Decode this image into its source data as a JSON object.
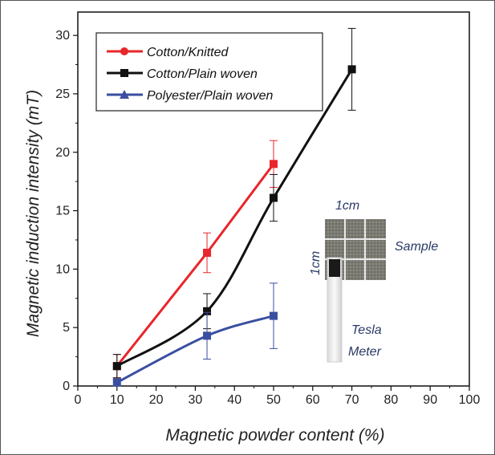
{
  "chart_data": {
    "type": "line",
    "xlabel": "Magnetic powder content (%)",
    "ylabel": "Magnetic induction intensity (mT)",
    "xlim": [
      0,
      100
    ],
    "ylim": [
      0,
      32
    ],
    "xticks": [
      0,
      10,
      20,
      30,
      40,
      50,
      60,
      70,
      80,
      90,
      100
    ],
    "yticks": [
      0,
      5,
      10,
      15,
      20,
      25,
      30
    ],
    "grid": false,
    "legend_position": "top-left",
    "series": [
      {
        "name": "Cotton/Knitted",
        "color": "#e8262b",
        "marker": "circle",
        "x": [
          10,
          33,
          50
        ],
        "y": [
          1.7,
          11.4,
          19.0
        ],
        "err": [
          1.0,
          1.7,
          2.0
        ],
        "smooth": false
      },
      {
        "name": "Cotton/Plain woven",
        "color": "#111111",
        "marker": "square",
        "x": [
          10,
          33,
          50,
          70
        ],
        "y": [
          1.7,
          6.4,
          16.1,
          27.1
        ],
        "err": [
          1.0,
          1.5,
          2.0,
          3.5
        ],
        "smooth": true
      },
      {
        "name": "Polyester/Plain woven",
        "color": "#3a4fa0",
        "marker": "triangle",
        "x": [
          10,
          33,
          50
        ],
        "y": [
          0.3,
          4.3,
          6.0
        ],
        "err": [
          0.3,
          2.0,
          2.8
        ],
        "smooth": true
      }
    ],
    "annotations": {
      "width_label": "1cm",
      "height_label": "1cm",
      "sample_label": "Sample",
      "meter_label_line1": "Tesla",
      "meter_label_line2": "Meter"
    }
  }
}
